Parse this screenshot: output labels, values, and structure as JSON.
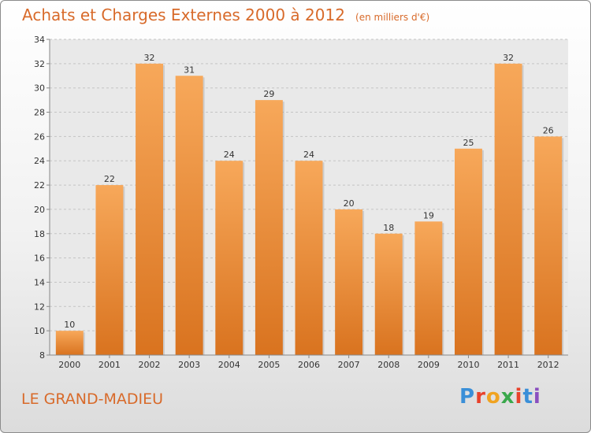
{
  "header": {
    "title": "Achats et Charges Externes 2000 à 2012",
    "unit": "(en milliers d'€)"
  },
  "footer": {
    "city": "LE GRAND-MADIEU",
    "logo": [
      "P",
      "r",
      "o",
      "x",
      "i",
      "t",
      "i"
    ]
  },
  "colors": {
    "title": "#d86a2a",
    "bar_light": "#f7a85a",
    "bar_dark": "#d9731f",
    "logo": [
      "#3a8fd8",
      "#e8422b",
      "#f0a321",
      "#3aa84c",
      "#e8422b",
      "#3a8fd8",
      "#8a4fbf"
    ]
  },
  "chart_data": {
    "type": "bar",
    "categories": [
      "2000",
      "2001",
      "2002",
      "2003",
      "2004",
      "2005",
      "2006",
      "2007",
      "2008",
      "2009",
      "2010",
      "2011",
      "2012"
    ],
    "values": [
      10,
      22,
      32,
      31,
      24,
      29,
      24,
      20,
      18,
      19,
      25,
      32,
      26
    ],
    "ylim": [
      8,
      34
    ],
    "yticks": [
      8,
      10,
      12,
      14,
      16,
      18,
      20,
      22,
      24,
      26,
      28,
      30,
      32,
      34
    ],
    "grid": true,
    "title": "Achats et Charges Externes 2000 à 2012",
    "xlabel": "",
    "ylabel": ""
  }
}
